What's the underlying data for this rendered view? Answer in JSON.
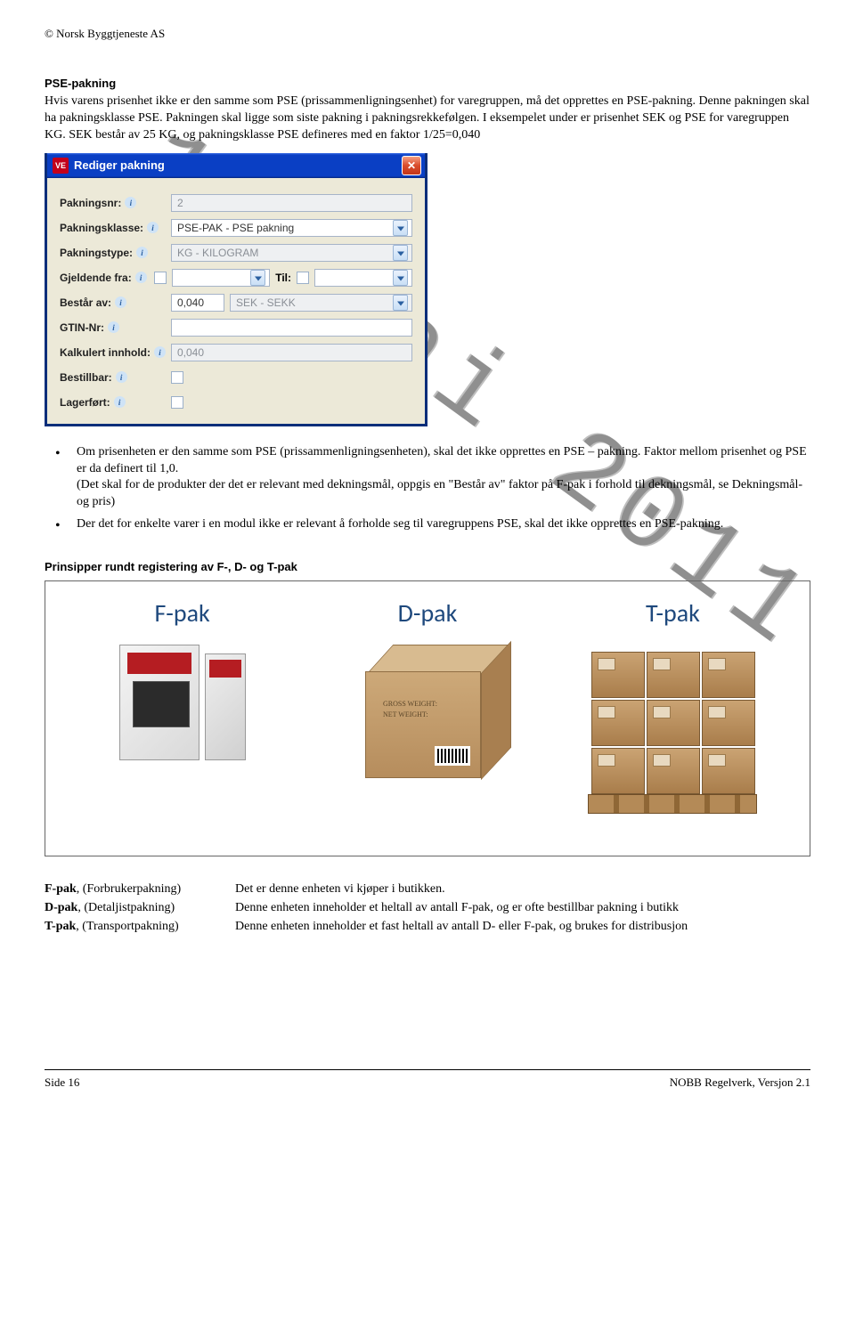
{
  "copyright": "© Norsk Byggtjeneste AS",
  "section1_heading": "PSE-pakning",
  "section1_para": "Hvis varens prisenhet ikke er den samme som PSE (prissammenligningsenhet) for varegruppen, må det opprettes en PSE-pakning. Denne pakningen skal ha pakningsklasse PSE. Pakningen skal ligge som siste pakning i pakningsrekkefølgen. I eksempelet under er prisenhet SEK og PSE for varegruppen KG. SEK består av 25 KG, og pakningsklasse PSE defineres med en faktor 1/25=0,040",
  "dialog": {
    "title": "Rediger pakning",
    "icon_text": "VE",
    "rows": {
      "pakningsnr": {
        "label": "Pakningsnr:",
        "value": "2"
      },
      "pakningsklasse": {
        "label": "Pakningsklasse:",
        "value": "PSE-PAK - PSE pakning"
      },
      "pakningstype": {
        "label": "Pakningstype:",
        "value": "KG - KILOGRAM"
      },
      "gjeldende_fra": {
        "label": "Gjeldende fra:",
        "til_label": "Til:"
      },
      "bestar_av": {
        "label": "Består av:",
        "value": "0,040",
        "unit": "SEK - SEKK"
      },
      "gtin": {
        "label": "GTIN-Nr:",
        "value": ""
      },
      "kalkulert": {
        "label": "Kalkulert innhold:",
        "value": "0,040"
      },
      "bestillbar": {
        "label": "Bestillbar:"
      },
      "lagerfort": {
        "label": "Lagerført:"
      }
    }
  },
  "bullets": {
    "b1": "Om prisenheten er den samme som PSE (prissammenligningsenheten), skal det ikke opprettes en PSE – pakning. Faktor mellom prisenhet og PSE er da definert til 1,0.\n(Det skal for de produkter der det er relevant med dekningsmål, oppgis en \"Består av\" faktor på F-pak i forhold til dekningsmål, se Dekningsmål- og pris)",
    "b2": "Der det for enkelte varer i en modul ikke er relevant å forholde seg til varegruppens PSE, skal det ikke opprettes en PSE-pakning."
  },
  "section2_heading": "Prinsipper rundt registering av F-, D- og T-pak",
  "pak": {
    "f": "F-pak",
    "d": "D-pak",
    "t": "T-pak",
    "title_color": "#1f497d",
    "d_label1": "GROSS WEIGHT:",
    "d_label2": "NET WEIGHT:"
  },
  "defs": {
    "f_key_bold": "F-pak",
    "f_key_rest": ", (Forbrukerpakning)",
    "f_val": "Det er denne enheten vi kjøper i butikken.",
    "d_key_bold": "D-pak",
    "d_key_rest": ", (Detaljistpakning)",
    "d_val": "Denne enheten inneholder et heltall av antall F-pak, og er ofte bestillbar pakning i butikk",
    "t_key_bold": "T-pak",
    "t_key_rest": ", (Transportpakning)",
    "t_val": "Denne enheten inneholder et fast heltall av antall D- eller F-pak, og brukes for distribusjon"
  },
  "watermark": "1. mai 2011",
  "footer": {
    "left": "Side 16",
    "right": "NOBB Regelverk, Versjon 2.1"
  }
}
